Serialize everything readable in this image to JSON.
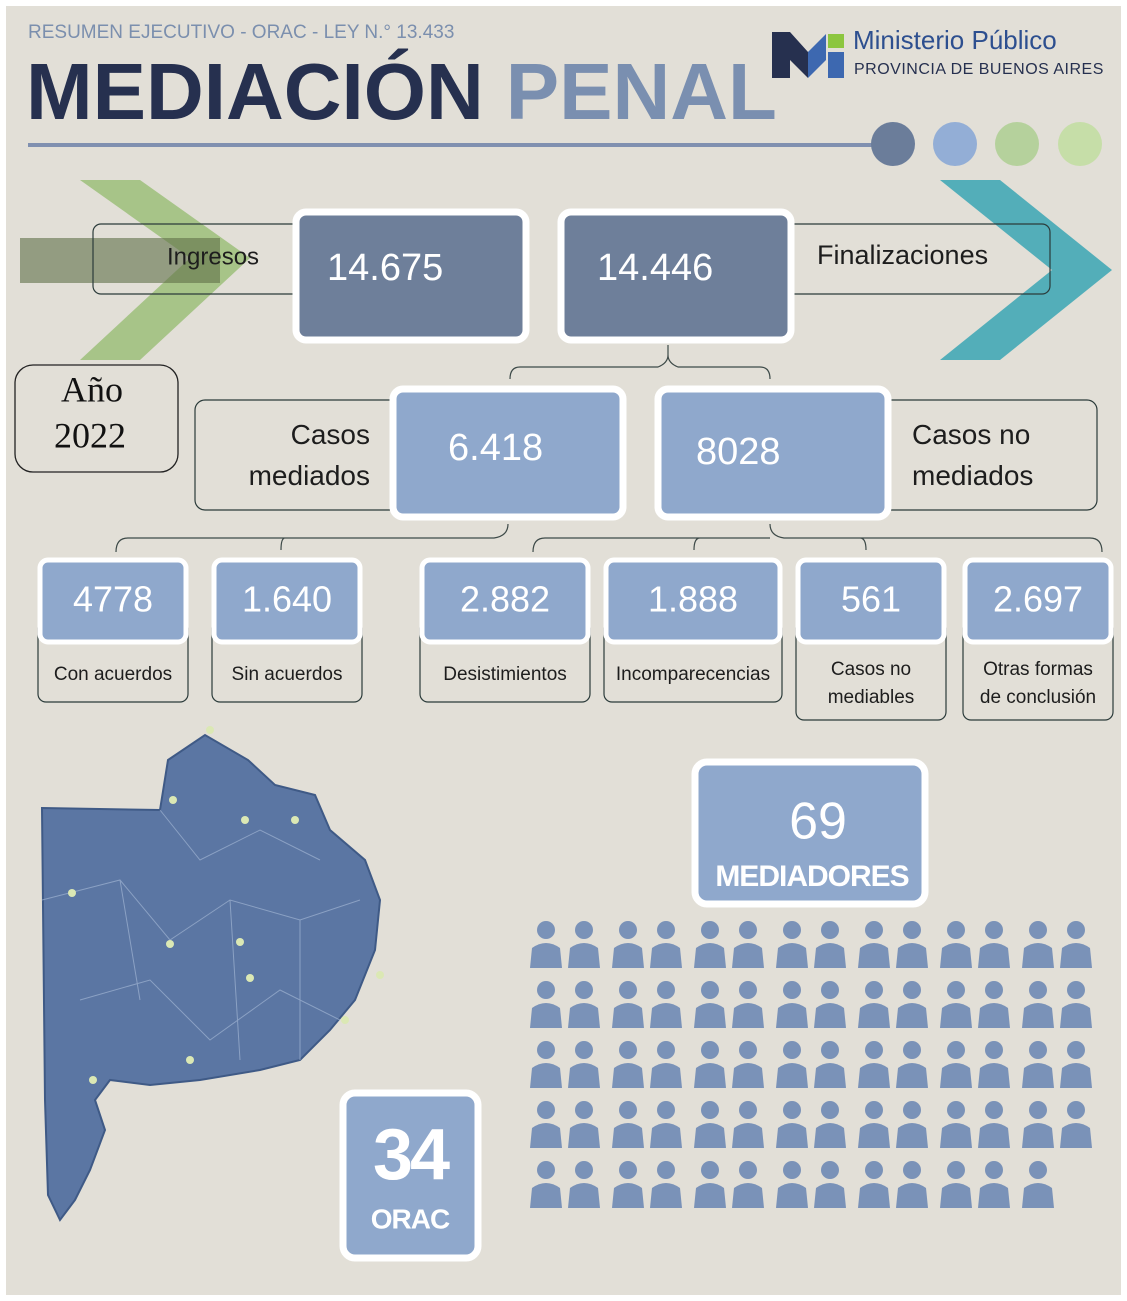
{
  "header": {
    "subtitle": "RESUMEN EJECUTIVO - ORAC - LEY N.° 13.433",
    "title_main": "MEDIACIÓN",
    "title_accent": "PENAL"
  },
  "logo": {
    "name": "Ministerio Público",
    "sub": "PROVINCIA DE BUENOS AIRES"
  },
  "year": {
    "label": "Año",
    "value": "2022"
  },
  "ingresos": {
    "label": "Ingresos",
    "value": "14.675"
  },
  "finalizaciones": {
    "label": "Finalizaciones",
    "value": "14.446"
  },
  "mediados": {
    "label_lines": [
      "Casos",
      "mediados"
    ],
    "value": "6.418"
  },
  "no_mediados": {
    "label_lines": [
      "Casos no",
      "mediados"
    ],
    "value": "8028"
  },
  "breakdown": [
    {
      "value": "4778",
      "label_lines": [
        "Con acuerdos"
      ]
    },
    {
      "value": "1.640",
      "label_lines": [
        "Sin acuerdos"
      ]
    },
    {
      "value": "2.882",
      "label_lines": [
        "Desistimientos"
      ]
    },
    {
      "value": "1.888",
      "label_lines": [
        "Incomparecencias"
      ]
    },
    {
      "value": "561",
      "label_lines": [
        "Casos no",
        "mediables"
      ]
    },
    {
      "value": "2.697",
      "label_lines": [
        "Otras formas",
        "de conclusión"
      ]
    }
  ],
  "mediadores": {
    "value": "69",
    "label": "MEDIADORES"
  },
  "orac": {
    "value": "34",
    "label": "ORAC"
  }
}
